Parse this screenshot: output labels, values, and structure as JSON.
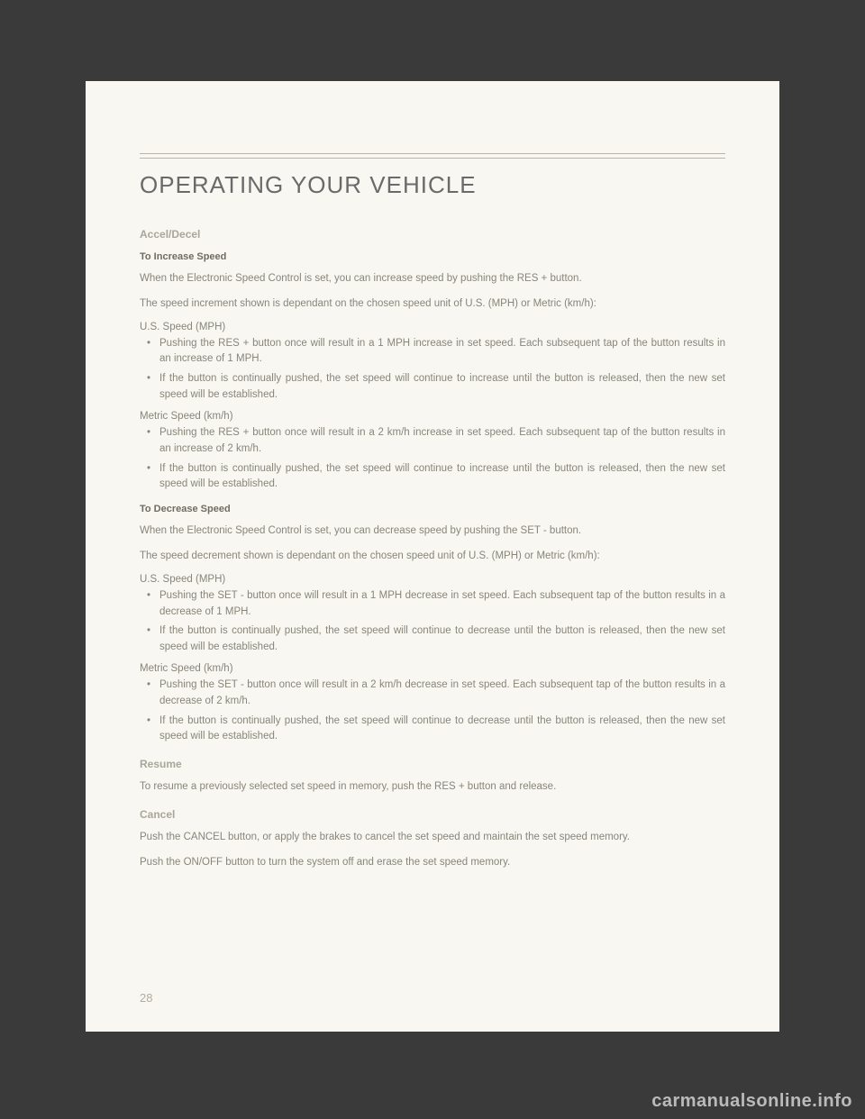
{
  "page_number": "28",
  "watermark": "carmanualsonline.info",
  "chapter_title": "OPERATING YOUR VEHICLE",
  "colors": {
    "page_bg": "#f8f7f2",
    "outer_bg": "#3a3a3a",
    "rule": "#b8b5aa",
    "title": "#6a6a6a",
    "section_label": "#a9a79a",
    "body": "#888679"
  },
  "sections": {
    "accel_decel": {
      "label": "Accel/Decel",
      "increase": {
        "heading": "To Increase Speed",
        "p1": "When the Electronic Speed Control is set, you can increase speed by pushing the RES + button.",
        "p2": "The speed increment shown is dependant on the chosen speed unit of U.S. (MPH) or Metric (km/h):",
        "us_label": "U.S. Speed (MPH)",
        "us_b1": "Pushing the RES + button once will result in a 1 MPH increase in set speed. Each subsequent tap of the button results in an increase of 1 MPH.",
        "us_b2": "If the button is continually pushed, the set speed will continue to increase until the button is released, then the new set speed will be established.",
        "metric_label": "Metric Speed (km/h)",
        "metric_b1": "Pushing the RES + button once will result in a 2 km/h increase in set speed. Each subsequent tap of the button results in an increase of 2 km/h.",
        "metric_b2": "If the button is continually pushed, the set speed will continue to increase until the button is released, then the new set speed will be established."
      },
      "decrease": {
        "heading": "To Decrease Speed",
        "p1": "When the Electronic Speed Control is set, you can decrease speed by pushing the SET - button.",
        "p2": "The speed decrement shown is dependant on the chosen speed unit of U.S. (MPH) or Metric (km/h):",
        "us_label": "U.S. Speed (MPH)",
        "us_b1": "Pushing the SET - button once will result in a 1 MPH decrease in set speed. Each subsequent tap of the button results in a decrease of 1 MPH.",
        "us_b2": "If the button is continually pushed, the set speed will continue to decrease until the button is released, then the new set speed will be established.",
        "metric_label": "Metric Speed (km/h)",
        "metric_b1": "Pushing the SET - button once will result in a 2 km/h decrease in set speed. Each subsequent tap of the button results in a decrease of 2 km/h.",
        "metric_b2": "If the button is continually pushed, the set speed will continue to decrease until the button is released, then the new set speed will be established."
      }
    },
    "resume": {
      "label": "Resume",
      "p1": "To resume a previously selected set speed in memory, push the RES + button and release."
    },
    "cancel": {
      "label": "Cancel",
      "p1": "Push the CANCEL button, or apply the brakes to cancel the set speed and maintain the set speed memory.",
      "p2": "Push the ON/OFF button to turn the system off and erase the set speed memory."
    }
  }
}
